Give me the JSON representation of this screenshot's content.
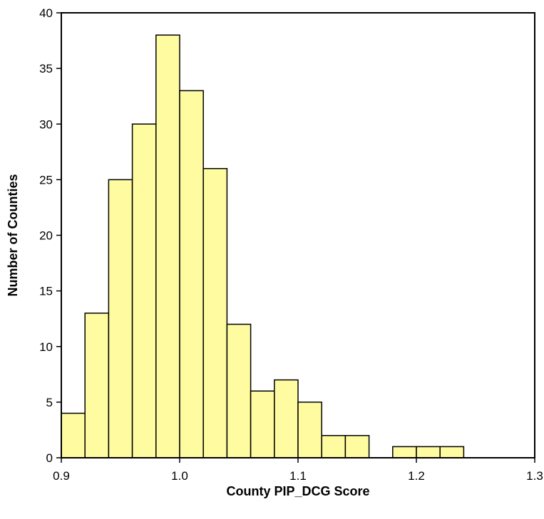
{
  "chart_data": {
    "type": "bar",
    "title": "",
    "xlabel": "County PIP_DCG Score",
    "ylabel": "Number of Counties",
    "xlim": [
      0.9,
      1.3
    ],
    "ylim": [
      0,
      40
    ],
    "bin_width": 0.02,
    "bins": [
      {
        "x0": 0.9,
        "x1": 0.92,
        "count": 4
      },
      {
        "x0": 0.92,
        "x1": 0.94,
        "count": 13
      },
      {
        "x0": 0.94,
        "x1": 0.96,
        "count": 25
      },
      {
        "x0": 0.96,
        "x1": 0.98,
        "count": 30
      },
      {
        "x0": 0.98,
        "x1": 1.0,
        "count": 38
      },
      {
        "x0": 1.0,
        "x1": 1.02,
        "count": 33
      },
      {
        "x0": 1.02,
        "x1": 1.04,
        "count": 26
      },
      {
        "x0": 1.04,
        "x1": 1.06,
        "count": 12
      },
      {
        "x0": 1.06,
        "x1": 1.08,
        "count": 6
      },
      {
        "x0": 1.08,
        "x1": 1.1,
        "count": 7
      },
      {
        "x0": 1.1,
        "x1": 1.12,
        "count": 5
      },
      {
        "x0": 1.12,
        "x1": 1.14,
        "count": 2
      },
      {
        "x0": 1.14,
        "x1": 1.16,
        "count": 2
      },
      {
        "x0": 1.16,
        "x1": 1.18,
        "count": 0
      },
      {
        "x0": 1.18,
        "x1": 1.2,
        "count": 1
      },
      {
        "x0": 1.2,
        "x1": 1.22,
        "count": 1
      },
      {
        "x0": 1.22,
        "x1": 1.24,
        "count": 1
      }
    ],
    "x_ticks": [
      "0.9",
      "1.0",
      "1.1",
      "1.2",
      "1.3"
    ],
    "y_ticks": [
      "0",
      "5",
      "10",
      "15",
      "20",
      "25",
      "30",
      "35",
      "40"
    ],
    "grid": false,
    "colors": {
      "bar_fill": "#FFFBA0",
      "bar_stroke": "#000000",
      "axis": "#000000"
    }
  }
}
